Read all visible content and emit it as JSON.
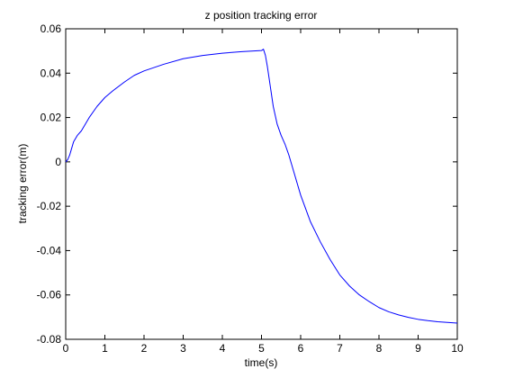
{
  "chart_data": {
    "type": "line",
    "title": "z position tracking error",
    "xlabel": "time(s)",
    "ylabel": "tracking error(m)",
    "xlim": [
      0,
      10
    ],
    "ylim": [
      -0.08,
      0.06
    ],
    "xticks": [
      0,
      1,
      2,
      3,
      4,
      5,
      6,
      7,
      8,
      9,
      10
    ],
    "xtick_labels": [
      "0",
      "1",
      "2",
      "3",
      "4",
      "5",
      "6",
      "7",
      "8",
      "9",
      "10"
    ],
    "yticks": [
      -0.08,
      -0.06,
      -0.04,
      -0.02,
      0,
      0.02,
      0.04,
      0.06
    ],
    "ytick_labels": [
      "-0.08",
      "-0.06",
      "-0.04",
      "-0.02",
      "0",
      "0.02",
      "0.04",
      "0.06"
    ],
    "grid": false,
    "legend": false,
    "series": [
      {
        "color": "#0000ff",
        "x": [
          0,
          0.05,
          0.1,
          0.15,
          0.2,
          0.3,
          0.4,
          0.5,
          0.6,
          0.8,
          1.0,
          1.2,
          1.5,
          1.75,
          2.0,
          2.5,
          3.0,
          3.5,
          4.0,
          4.5,
          5.0,
          5.05,
          5.1,
          5.15,
          5.2,
          5.3,
          5.4,
          5.5,
          5.6,
          5.7,
          5.8,
          6.0,
          6.25,
          6.5,
          6.75,
          7.0,
          7.25,
          7.5,
          7.75,
          8.0,
          8.25,
          8.5,
          8.75,
          9.0,
          9.25,
          9.5,
          9.75,
          10.0
        ],
        "y": [
          0.0,
          0.001,
          0.003,
          0.006,
          0.009,
          0.012,
          0.014,
          0.017,
          0.02,
          0.025,
          0.029,
          0.032,
          0.036,
          0.039,
          0.041,
          0.044,
          0.0465,
          0.048,
          0.049,
          0.0497,
          0.0502,
          0.0508,
          0.048,
          0.043,
          0.037,
          0.025,
          0.017,
          0.012,
          0.008,
          0.003,
          -0.003,
          -0.015,
          -0.027,
          -0.036,
          -0.044,
          -0.051,
          -0.056,
          -0.06,
          -0.063,
          -0.0657,
          -0.0676,
          -0.069,
          -0.0701,
          -0.071,
          -0.0716,
          -0.0721,
          -0.0724,
          -0.0727
        ]
      }
    ]
  }
}
